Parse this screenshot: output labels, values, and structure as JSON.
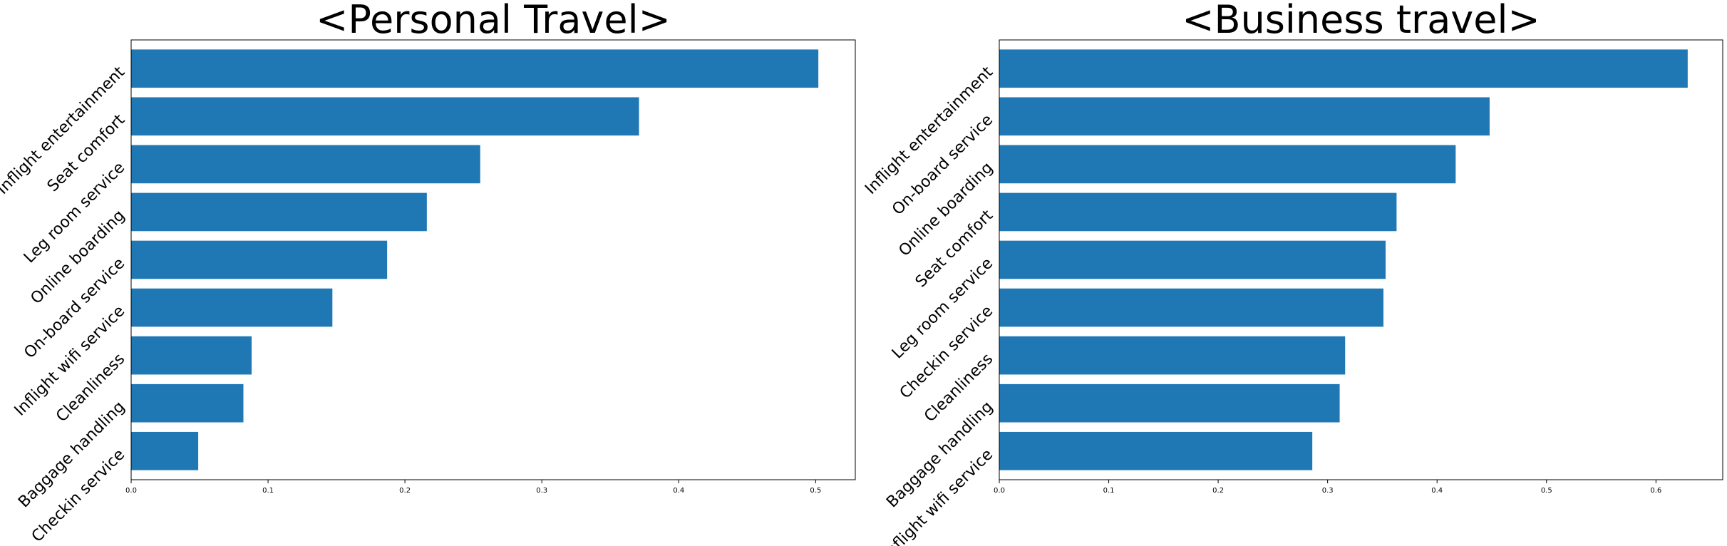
{
  "chart_data": [
    {
      "type": "bar",
      "orientation": "horizontal",
      "title": "<Personal Travel>",
      "xlabel": "",
      "ylabel": "",
      "categories": [
        "Inflight entertainment",
        "Seat comfort",
        "Leg room service",
        "Online boarding",
        "On-board service",
        "Inflight wifi service",
        "Cleanliness",
        "Baggage handling",
        "Checkin service"
      ],
      "values": [
        0.502,
        0.371,
        0.255,
        0.216,
        0.187,
        0.147,
        0.088,
        0.082,
        0.049
      ],
      "xlim": [
        0,
        0.529
      ],
      "xticks": [
        0.0,
        0.1,
        0.2,
        0.3,
        0.4,
        0.5
      ],
      "xtick_labels": [
        "0.0",
        "0.1",
        "0.2",
        "0.3",
        "0.4",
        "0.5"
      ],
      "color": "#1f77b4",
      "grid": false,
      "legend": "none"
    },
    {
      "type": "bar",
      "orientation": "horizontal",
      "title": "<Business travel>",
      "xlabel": "",
      "ylabel": "",
      "categories": [
        "Inflight entertainment",
        "On-board service",
        "Online boarding",
        "Seat comfort",
        "Leg room service",
        "Checkin service",
        "Cleanliness",
        "Baggage handling",
        "Inflight wifi service"
      ],
      "values": [
        0.629,
        0.448,
        0.417,
        0.363,
        0.353,
        0.351,
        0.316,
        0.311,
        0.286
      ],
      "xlim": [
        0,
        0.661
      ],
      "xticks": [
        0.0,
        0.1,
        0.2,
        0.3,
        0.4,
        0.5,
        0.6
      ],
      "xtick_labels": [
        "0.0",
        "0.1",
        "0.2",
        "0.3",
        "0.4",
        "0.5",
        "0.6"
      ],
      "color": "#1f77b4",
      "grid": false,
      "legend": "none"
    }
  ]
}
